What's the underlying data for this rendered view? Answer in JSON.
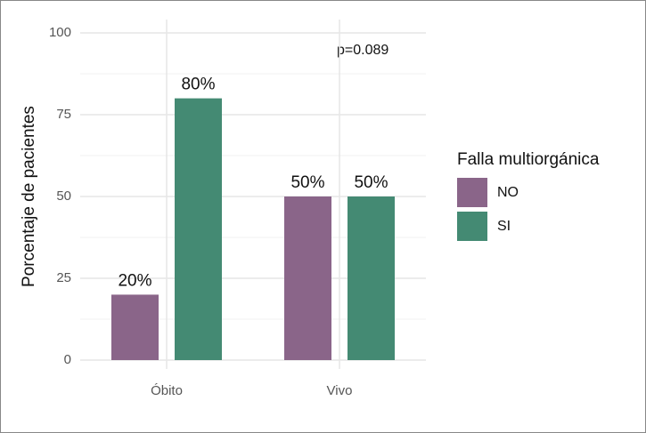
{
  "chart_data": {
    "type": "bar",
    "categories": [
      "Óbito",
      "Vivo"
    ],
    "series": [
      {
        "name": "NO",
        "color": "#8a6589",
        "values": [
          20,
          50
        ],
        "value_labels": [
          "20%",
          "50%"
        ]
      },
      {
        "name": "SI",
        "color": "#448a73",
        "values": [
          80,
          50
        ],
        "value_labels": [
          "80%",
          "50%"
        ]
      }
    ],
    "y_label": "Porcentaje de pacientes",
    "legend_title": "Falla multiorgánica",
    "annotation": "p=0.089",
    "ylim": [
      0,
      100
    ],
    "yticks": [
      0,
      25,
      50,
      75,
      100
    ],
    "grid": true
  }
}
